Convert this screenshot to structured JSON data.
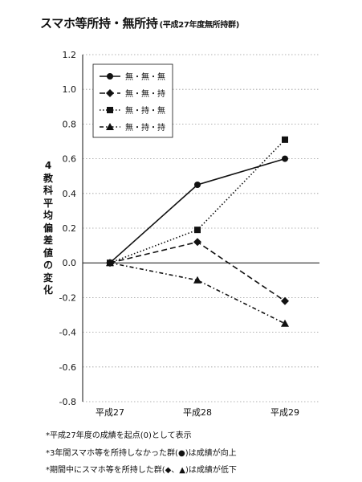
{
  "title": {
    "main": "スマホ等所持・無所持",
    "sub": "(平成27年度無所持群)"
  },
  "notes": [
    "*平成27年度の成績を起点(0)として表示",
    "*3年間スマホ等を所持しなかった群(●)は成績が向上",
    "*期間中にスマホ等を所持した群(◆、▲)は成績が低下"
  ],
  "chart_data": {
    "type": "line",
    "title": "スマホ等所持・無所持 (平成27年度無所持群)",
    "xlabel": "",
    "ylabel": "4教科平均偏差値の変化",
    "categories": [
      "平成27",
      "平成28",
      "平成29"
    ],
    "ylim": [
      -0.8,
      1.2
    ],
    "yticks": [
      -0.8,
      -0.6,
      -0.4,
      -0.2,
      0.0,
      0.2,
      0.4,
      0.6,
      0.8,
      1.0,
      1.2
    ],
    "ytick_labels": [
      "-0.8",
      "-0.6",
      "-0.4",
      "-0.2",
      "0.0",
      "0.2",
      "0.4",
      "0.6",
      "0.8",
      "1.0",
      "1.2"
    ],
    "grid": "horizontal dotted",
    "legend_position": "top-left",
    "series": [
      {
        "name": "無・無・無",
        "values": [
          0,
          0.45,
          0.6
        ],
        "marker": "circle",
        "line": "solid"
      },
      {
        "name": "無・無・持",
        "values": [
          0,
          0.12,
          -0.22
        ],
        "marker": "diamond",
        "line": "dashed"
      },
      {
        "name": "無・持・無",
        "values": [
          0,
          0.19,
          0.71
        ],
        "marker": "square",
        "line": "dotted"
      },
      {
        "name": "無・持・持",
        "values": [
          0,
          -0.1,
          -0.35
        ],
        "marker": "triangle",
        "line": "dashdot"
      }
    ]
  }
}
